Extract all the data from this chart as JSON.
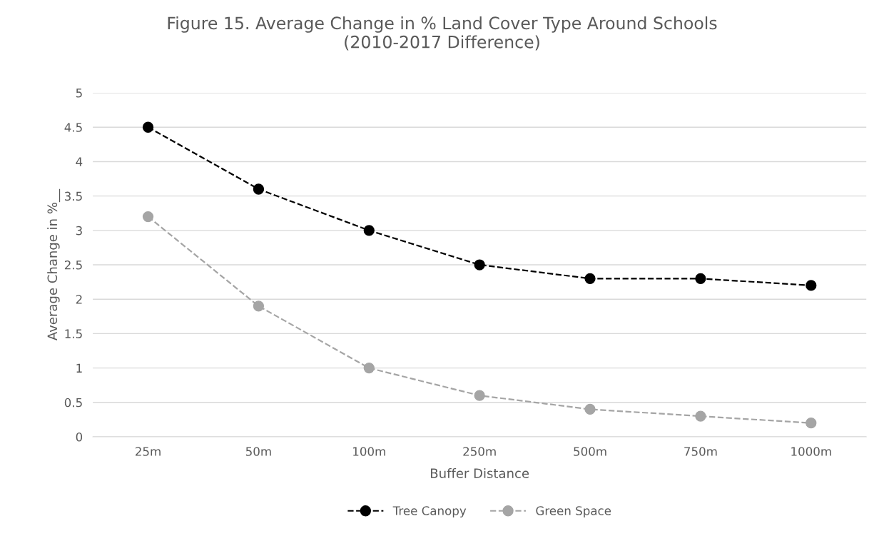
{
  "chart_data": {
    "type": "line",
    "title": "Figure 15. Average Change in % Land Cover Type Around Schools\n(2010-2017 Difference)",
    "xlabel": "Buffer Distance",
    "ylabel": "Average Change in %__",
    "categories": [
      "25m",
      "50m",
      "100m",
      "250m",
      "500m",
      "750m",
      "1000m"
    ],
    "series": [
      {
        "name": "Tree Canopy",
        "color": "#000000",
        "values": [
          4.5,
          3.6,
          3.0,
          2.5,
          2.3,
          2.3,
          2.2
        ]
      },
      {
        "name": "Green Space",
        "color": "#a5a5a5",
        "values": [
          3.2,
          1.9,
          1.0,
          0.6,
          0.4,
          0.3,
          0.2
        ]
      }
    ],
    "ylim": [
      0,
      5
    ],
    "yticks": [
      0,
      {
        "value": 0.5,
        "label": "0.5"
      },
      1,
      {
        "value": 1.5,
        "label": "1.5"
      },
      2,
      {
        "value": 2.5,
        "label": "2.5"
      },
      3,
      {
        "value": 3.5,
        "label": "3.5"
      },
      4,
      {
        "value": 4.5,
        "label": "4.5"
      },
      5
    ],
    "grid": "y",
    "legend": "bottom",
    "marker": "circle",
    "line_style": "dashed"
  }
}
